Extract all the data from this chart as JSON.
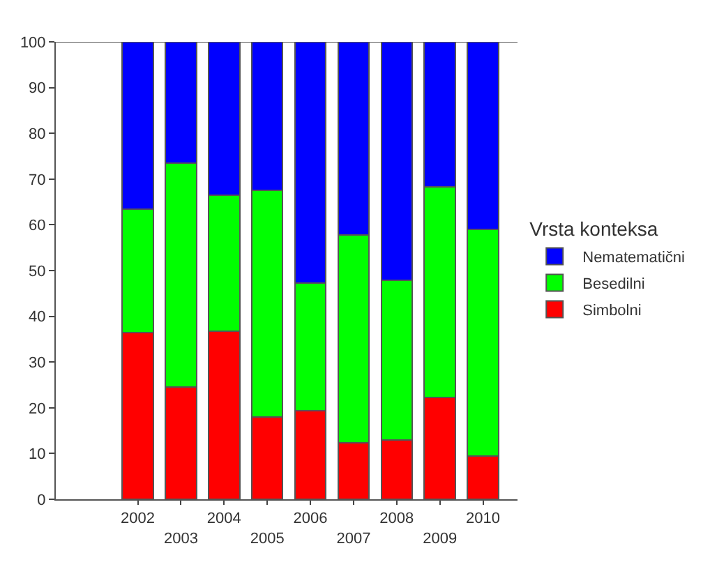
{
  "chart_data": {
    "type": "bar",
    "stacked": true,
    "categories": [
      "2002",
      "2003",
      "2004",
      "2005",
      "2006",
      "2007",
      "2008",
      "2009",
      "2010"
    ],
    "series": [
      {
        "name": "Simbolni",
        "color": "#ff0000",
        "values": [
          36.5,
          24.5,
          36.7,
          18,
          19.3,
          12.4,
          13,
          22.2,
          9.4
        ]
      },
      {
        "name": "Besedilni",
        "color": "#00ff00",
        "values": [
          26.9,
          49,
          29.7,
          49.6,
          27.9,
          45.3,
          34.9,
          46.1,
          49.6
        ]
      },
      {
        "name": "Nematematični",
        "color": "#0000ff",
        "values": [
          36.6,
          26.5,
          33.6,
          32.4,
          52.8,
          42.3,
          52.1,
          31.7,
          41.0
        ]
      }
    ],
    "legend_title": "Vrsta konteksa",
    "legend": "right",
    "ylim": [
      0,
      100
    ],
    "yticks": [
      0,
      10,
      20,
      30,
      40,
      50,
      60,
      70,
      80,
      90,
      100
    ]
  }
}
